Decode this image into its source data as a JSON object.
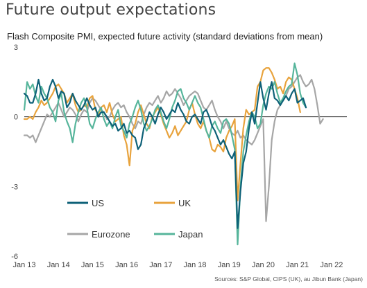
{
  "title": "Future output expectations",
  "subtitle": "Flash Composite PMI, expected future activity (standard deviations from mean)",
  "source": "Sources: S&P Global, CIPS (UK), au Jibun Bank (Japan)",
  "chart_data": {
    "type": "line",
    "ylim": [
      -6,
      3
    ],
    "yticks": [
      3,
      0,
      -3,
      -6
    ],
    "xlim": [
      2013.0,
      2022.45
    ],
    "xticks": [
      {
        "x": 2013.0,
        "label": "Jan 13"
      },
      {
        "x": 2014.0,
        "label": "Jan 14"
      },
      {
        "x": 2015.0,
        "label": "Jan 15"
      },
      {
        "x": 2016.0,
        "label": "Jan 16"
      },
      {
        "x": 2017.0,
        "label": "Jan 17"
      },
      {
        "x": 2018.0,
        "label": "Jan 18"
      },
      {
        "x": 2019.0,
        "label": "Jan 19"
      },
      {
        "x": 2020.0,
        "label": "Jan 20"
      },
      {
        "x": 2021.0,
        "label": "Jan 21"
      },
      {
        "x": 2022.0,
        "label": "Jan 22"
      }
    ],
    "legend": [
      {
        "name": "US",
        "color": "#0e6178"
      },
      {
        "name": "UK",
        "color": "#e8a33d"
      },
      {
        "name": "Eurozone",
        "color": "#a6a6a6"
      },
      {
        "name": "Japan",
        "color": "#56b59b"
      }
    ],
    "series": [
      {
        "name": "Eurozone",
        "color": "#a6a6a6",
        "start": 2013.0,
        "values": [
          -0.8,
          -0.8,
          -0.9,
          -0.8,
          -1.1,
          -0.8,
          -0.5,
          -0.2,
          0.1,
          0.0,
          0.2,
          0.4,
          0.6,
          0.3,
          0.0,
          0.2,
          0.4,
          0.3,
          0.1,
          -0.2,
          0.1,
          0.3,
          0.2,
          0.6,
          0.8,
          0.7,
          0.5,
          0.3,
          0.2,
          -0.1,
          0.0,
          0.3,
          0.5,
          0.6,
          0.4,
          0.5,
          0.2,
          0.0,
          -0.3,
          -0.5,
          -0.2,
          -0.3,
          0.1,
          0.4,
          0.6,
          0.5,
          0.7,
          0.9,
          0.6,
          0.8,
          1.1,
          0.9,
          1.0,
          1.2,
          1.0,
          0.8,
          0.5,
          0.7,
          0.9,
          1.0,
          1.1,
          1.0,
          0.7,
          0.4,
          0.3,
          0.5,
          0.7,
          0.3,
          0.0,
          -0.2,
          -0.5,
          -0.2,
          -0.5,
          -0.7,
          -0.8,
          -0.6,
          -0.9,
          -0.8,
          -1.0,
          -1.1,
          -1.2,
          -1.0,
          -0.7,
          -0.4,
          -0.1,
          -4.5,
          -3.0,
          -1.0,
          -0.2,
          0.3,
          0.5,
          0.8,
          0.9,
          1.2,
          1.3,
          1.5,
          1.7,
          1.8,
          1.5,
          1.3,
          1.4,
          1.6,
          1.2,
          0.5,
          -0.3,
          -0.1
        ]
      },
      {
        "name": "UK",
        "color": "#e8a33d",
        "start": 2013.0,
        "values": [
          -0.1,
          -0.1,
          0.0,
          -0.1,
          0.2,
          0.4,
          0.7,
          0.5,
          0.6,
          0.8,
          1.0,
          1.3,
          1.4,
          1.2,
          1.0,
          0.6,
          0.8,
          1.0,
          0.5,
          0.2,
          0.3,
          0.5,
          0.4,
          0.8,
          0.9,
          0.3,
          0.1,
          0.4,
          0.5,
          0.2,
          0.6,
          0.1,
          -0.2,
          -0.1,
          0.0,
          -0.8,
          -1.2,
          -2.1,
          -0.6,
          -0.3,
          0.2,
          0.5,
          0.1,
          -0.3,
          -0.5,
          0.0,
          0.2,
          0.4,
          0.1,
          -0.3,
          -0.6,
          -0.9,
          -0.7,
          -0.4,
          -0.8,
          -0.6,
          -0.4,
          -0.2,
          0.3,
          0.6,
          0.1,
          -0.3,
          -0.5,
          -0.2,
          -0.6,
          -0.9,
          -1.4,
          -1.5,
          -1.2,
          -1.3,
          -1.5,
          -0.9,
          -0.6,
          -0.4,
          -0.1,
          -3.6,
          -2.0,
          -0.5,
          0.3,
          0.1,
          0.2,
          0.3,
          1.3,
          1.5,
          2.0,
          2.1,
          2.1,
          1.9,
          1.6,
          1.2,
          1.3,
          1.0,
          1.5,
          1.7,
          1.6,
          1.2,
          0.8,
          0.2
        ]
      },
      {
        "name": "Japan",
        "color": "#56b59b",
        "start": 2013.0,
        "values": [
          0.3,
          1.5,
          1.2,
          1.4,
          0.9,
          0.6,
          1.3,
          1.0,
          0.8,
          0.4,
          0.2,
          -0.2,
          0.7,
          1.0,
          0.2,
          -0.2,
          -0.5,
          -1.1,
          -0.3,
          0.2,
          0.6,
          0.8,
          0.4,
          -0.3,
          -0.5,
          -0.1,
          0.2,
          0.4,
          -0.1,
          -0.4,
          -0.2,
          -0.5,
          0.0,
          0.3,
          -0.4,
          -0.6,
          -0.9,
          -0.3,
          0.0,
          0.4,
          0.7,
          0.3,
          -0.3,
          -0.6,
          -0.4,
          -0.1,
          0.3,
          0.5,
          0.2,
          -0.2,
          -0.5,
          -0.1,
          0.4,
          0.7,
          1.1,
          1.2,
          0.8,
          0.6,
          0.3,
          0.6,
          0.9,
          0.6,
          0.4,
          -0.1,
          -0.6,
          -0.9,
          -0.4,
          -0.2,
          -0.5,
          -0.7,
          -0.2,
          -0.1,
          -0.3,
          -0.8,
          -1.4,
          -5.5,
          -3.0,
          -1.5,
          -0.8,
          -0.2,
          0.2,
          0.0,
          -0.5,
          -0.3,
          0.5,
          1.0,
          1.3,
          1.2,
          1.5,
          1.0,
          0.6,
          0.8,
          1.1,
          1.3,
          1.4,
          2.3,
          1.8,
          1.0,
          0.6,
          0.4
        ]
      },
      {
        "name": "US",
        "color": "#0e6178",
        "start": 2013.0,
        "values": [
          1.0,
          0.9,
          0.6,
          0.6,
          1.0,
          1.6,
          1.0,
          0.7,
          0.8,
          1.3,
          1.6,
          1.3,
          0.8,
          1.1,
          1.0,
          0.4,
          0.6,
          1.0,
          0.7,
          0.5,
          0.3,
          0.5,
          0.8,
          0.5,
          0.3,
          0.4,
          0.0,
          0.2,
          0.2,
          0.0,
          -0.2,
          -0.4,
          -0.3,
          -0.6,
          -0.5,
          -0.3,
          -0.7,
          -0.6,
          -0.8,
          -0.9,
          -1.4,
          -1.2,
          -0.5,
          -0.2,
          0.2,
          0.0,
          -0.3,
          0.1,
          0.4,
          0.2,
          -0.1,
          0.1,
          0.3,
          0.2,
          0.6,
          0.3,
          0.1,
          -0.2,
          -0.3,
          0.0,
          0.1,
          -0.1,
          -0.3,
          0.2,
          0.3,
          0.0,
          -0.4,
          -0.6,
          -0.9,
          -1.2,
          -1.0,
          -1.3,
          -1.6,
          -1.8,
          -1.5,
          -4.8,
          -3.2,
          -2.0,
          -1.5,
          -0.5,
          0.2,
          -0.3,
          0.6,
          1.5,
          0.8,
          0.3,
          1.0,
          1.5,
          0.8,
          0.7,
          0.5,
          0.7,
          0.9,
          0.7,
          1.0,
          1.2,
          0.6,
          0.7,
          0.8,
          0.4
        ]
      }
    ]
  }
}
